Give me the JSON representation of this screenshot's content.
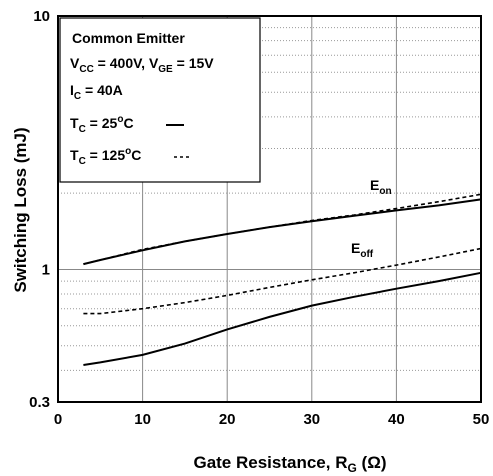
{
  "chart_data": {
    "type": "line",
    "xlabel": {
      "main": "Gate Resistance, R",
      "sub": "G",
      "tail": " (Ω)"
    },
    "ylabel": "Switching Loss (mJ)",
    "xlim": [
      0,
      50
    ],
    "ylim": [
      0.3,
      10
    ],
    "y_scale": "log",
    "grid": true,
    "x_ticks": [
      "0",
      "10",
      "20",
      "30",
      "40",
      "50"
    ],
    "y_ticks": [
      {
        "value": 10,
        "label": "10"
      },
      {
        "value": 1,
        "label": "1"
      },
      {
        "value": 0.3,
        "label": "0.3"
      }
    ],
    "legend": {
      "placement": "top-left",
      "line1": "Common Emitter",
      "vcc_pre": "V",
      "vcc_sub": "CC",
      "vcc_post": " = 400V, V",
      "vge_sub": "GE",
      "vge_post": " = 15V",
      "ic_pre": "I",
      "ic_sub": "C",
      "ic_post": " = 40A",
      "t25_pre": "T",
      "t25_sub": "C",
      "t25_mid": " = 25",
      "t25_sup": "o",
      "t25_post": "C",
      "t125_pre": "T",
      "t125_sub": "C",
      "t125_mid": " = 125",
      "t125_sup": "o",
      "t125_post": "C"
    },
    "annotations": {
      "eon_main": "E",
      "eon_sub": "on",
      "eoff_main": "E",
      "eoff_sub": "off"
    },
    "series": [
      {
        "style": "solid",
        "x": [
          3,
          5,
          10,
          15,
          20,
          25,
          30,
          35,
          40,
          45,
          50
        ],
        "y": [
          1.05,
          1.09,
          1.19,
          1.29,
          1.38,
          1.47,
          1.55,
          1.63,
          1.71,
          1.79,
          1.89
        ]
      },
      {
        "style": "dashed",
        "x": [
          3,
          5,
          10,
          15,
          20,
          25,
          30,
          35,
          40,
          45,
          50
        ],
        "y": [
          1.05,
          1.09,
          1.2,
          1.29,
          1.38,
          1.47,
          1.56,
          1.64,
          1.74,
          1.85,
          1.98
        ]
      },
      {
        "style": "solid",
        "x": [
          3,
          5,
          10,
          15,
          20,
          25,
          30,
          35,
          40,
          45,
          50
        ],
        "y": [
          0.42,
          0.43,
          0.46,
          0.51,
          0.58,
          0.65,
          0.72,
          0.78,
          0.84,
          0.9,
          0.97
        ]
      },
      {
        "style": "dashed",
        "x": [
          3,
          5,
          10,
          15,
          20,
          25,
          30,
          35,
          40,
          45,
          50
        ],
        "y": [
          0.67,
          0.67,
          0.7,
          0.74,
          0.79,
          0.85,
          0.91,
          0.97,
          1.04,
          1.12,
          1.21
        ]
      }
    ]
  }
}
